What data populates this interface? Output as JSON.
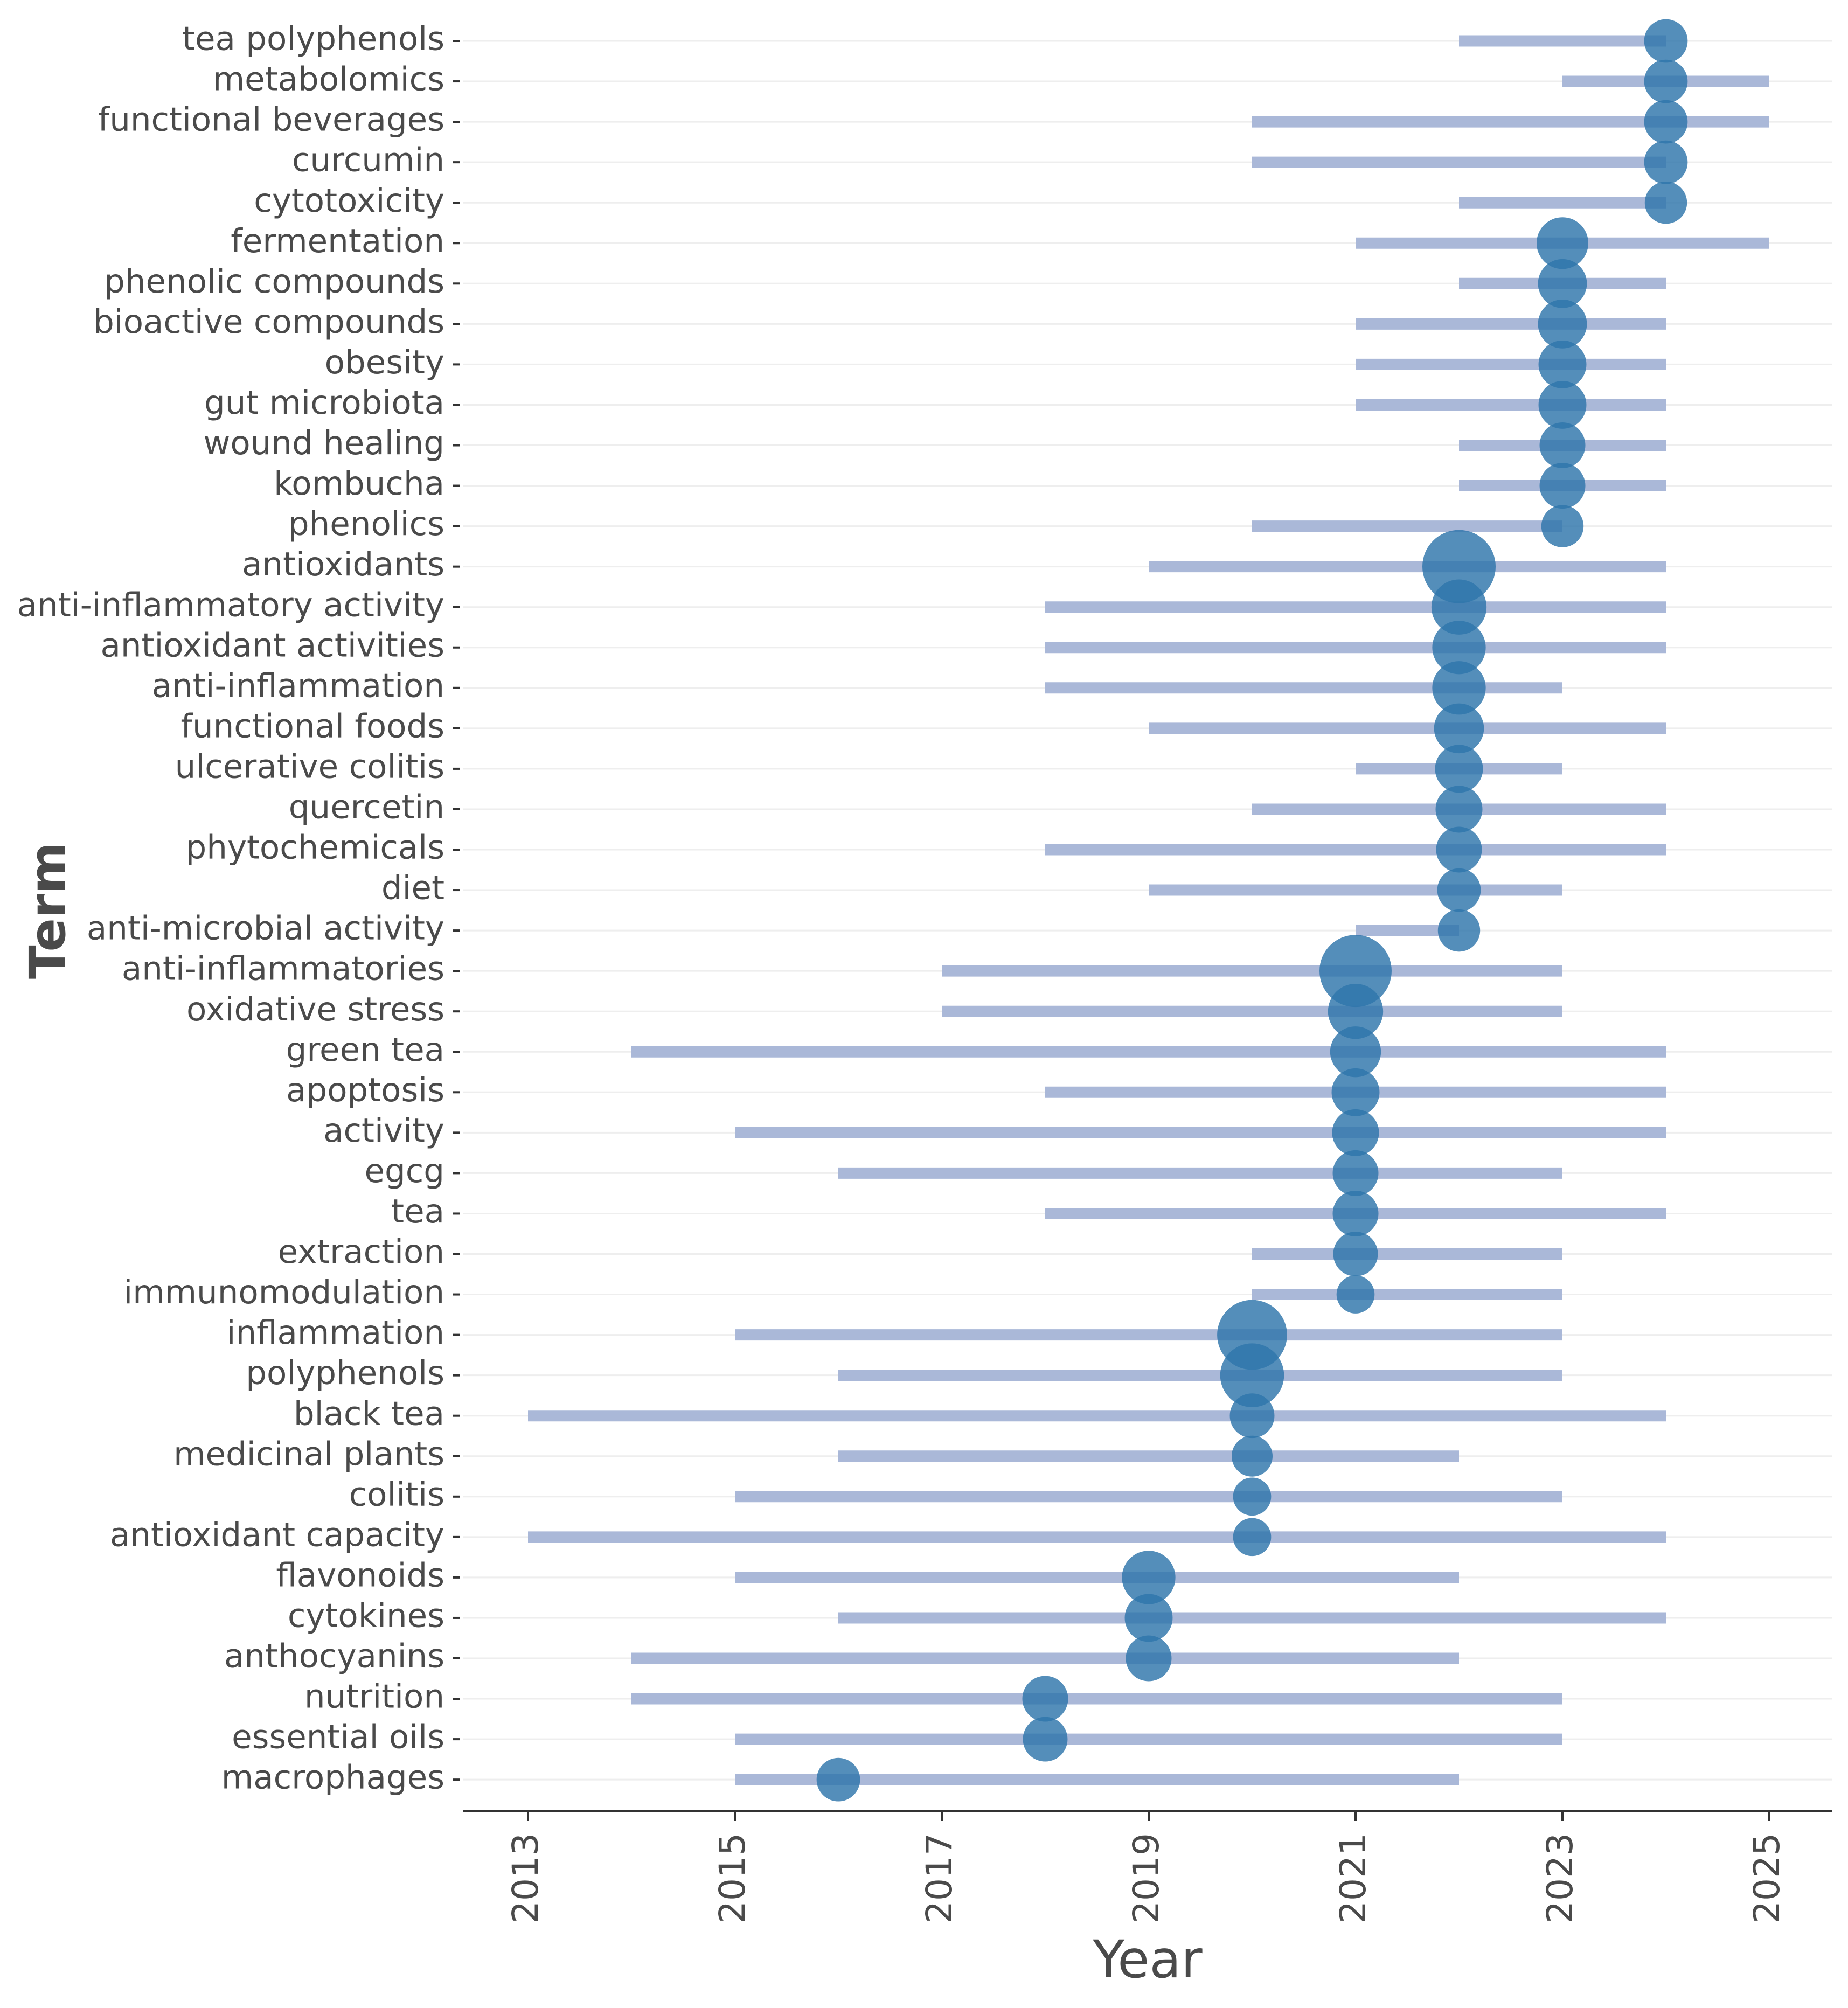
{
  "chart_data": {
    "type": "scatter",
    "subtype": "trend-topics",
    "title": "",
    "xlabel": "Year",
    "ylabel": "Term",
    "xlim": [
      2012.4,
      2025.6
    ],
    "xticks": [
      "2013",
      "2015",
      "2017",
      "2019",
      "2021",
      "2023",
      "2025"
    ],
    "grid": true,
    "colors": {
      "bar": "#aab8d8",
      "point": "#2e75ab",
      "gridline": "#eeeeee",
      "axis": "#333333",
      "text": "#4a4a4a"
    },
    "series": [
      {
        "term": "tea polyphenols",
        "start": 2022,
        "end": 2024,
        "median": 2024,
        "frequency": 10
      },
      {
        "term": "metabolomics",
        "start": 2023,
        "end": 2025,
        "median": 2024,
        "frequency": 10
      },
      {
        "term": "functional beverages",
        "start": 2020,
        "end": 2025,
        "median": 2024,
        "frequency": 10
      },
      {
        "term": "curcumin",
        "start": 2020,
        "end": 2024,
        "median": 2024,
        "frequency": 10
      },
      {
        "term": "cytotoxicity",
        "start": 2022,
        "end": 2024,
        "median": 2024,
        "frequency": 9
      },
      {
        "term": "fermentation",
        "start": 2021,
        "end": 2025,
        "median": 2023,
        "frequency": 18
      },
      {
        "term": "phenolic compounds",
        "start": 2022,
        "end": 2024,
        "median": 2023,
        "frequency": 15
      },
      {
        "term": "bioactive compounds",
        "start": 2021,
        "end": 2024,
        "median": 2023,
        "frequency": 15
      },
      {
        "term": "obesity",
        "start": 2021,
        "end": 2024,
        "median": 2023,
        "frequency": 14
      },
      {
        "term": "gut microbiota",
        "start": 2021,
        "end": 2024,
        "median": 2023,
        "frequency": 14
      },
      {
        "term": "wound healing",
        "start": 2022,
        "end": 2024,
        "median": 2023,
        "frequency": 12
      },
      {
        "term": "kombucha",
        "start": 2022,
        "end": 2024,
        "median": 2023,
        "frequency": 12
      },
      {
        "term": "phenolics",
        "start": 2020,
        "end": 2023,
        "median": 2023,
        "frequency": 9
      },
      {
        "term": "antioxidants",
        "start": 2019,
        "end": 2024,
        "median": 2022,
        "frequency": 50
      },
      {
        "term": "anti-inflammatory activity",
        "start": 2018,
        "end": 2024,
        "median": 2022,
        "frequency": 22
      },
      {
        "term": "antioxidant activities",
        "start": 2018,
        "end": 2024,
        "median": 2022,
        "frequency": 20
      },
      {
        "term": "anti-inflammation",
        "start": 2018,
        "end": 2023,
        "median": 2022,
        "frequency": 20
      },
      {
        "term": "functional foods",
        "start": 2019,
        "end": 2024,
        "median": 2022,
        "frequency": 16
      },
      {
        "term": "ulcerative colitis",
        "start": 2021,
        "end": 2023,
        "median": 2022,
        "frequency": 14
      },
      {
        "term": "quercetin",
        "start": 2020,
        "end": 2024,
        "median": 2022,
        "frequency": 13
      },
      {
        "term": "phytochemicals",
        "start": 2018,
        "end": 2024,
        "median": 2022,
        "frequency": 12
      },
      {
        "term": "diet",
        "start": 2019,
        "end": 2023,
        "median": 2022,
        "frequency": 10
      },
      {
        "term": "anti-microbial activity",
        "start": 2021,
        "end": 2022,
        "median": 2022,
        "frequency": 9
      },
      {
        "term": "anti-inflammatories",
        "start": 2017,
        "end": 2023,
        "median": 2021,
        "frequency": 48
      },
      {
        "term": "oxidative stress",
        "start": 2017,
        "end": 2023,
        "median": 2021,
        "frequency": 22
      },
      {
        "term": "green tea",
        "start": 2014,
        "end": 2024,
        "median": 2021,
        "frequency": 17
      },
      {
        "term": "apoptosis",
        "start": 2018,
        "end": 2024,
        "median": 2021,
        "frequency": 14
      },
      {
        "term": "activity",
        "start": 2015,
        "end": 2024,
        "median": 2021,
        "frequency": 13
      },
      {
        "term": "egcg",
        "start": 2016,
        "end": 2023,
        "median": 2021,
        "frequency": 12
      },
      {
        "term": "tea",
        "start": 2018,
        "end": 2024,
        "median": 2021,
        "frequency": 12
      },
      {
        "term": "extraction",
        "start": 2020,
        "end": 2023,
        "median": 2021,
        "frequency": 11
      },
      {
        "term": "immunomodulation",
        "start": 2020,
        "end": 2023,
        "median": 2021,
        "frequency": 6
      },
      {
        "term": "inflammation",
        "start": 2015,
        "end": 2023,
        "median": 2020,
        "frequency": 44
      },
      {
        "term": "polyphenols",
        "start": 2016,
        "end": 2023,
        "median": 2020,
        "frequency": 34
      },
      {
        "term": "black tea",
        "start": 2013,
        "end": 2024,
        "median": 2020,
        "frequency": 11
      },
      {
        "term": "medicinal plants",
        "start": 2016,
        "end": 2022,
        "median": 2020,
        "frequency": 8
      },
      {
        "term": "colitis",
        "start": 2015,
        "end": 2023,
        "median": 2020,
        "frequency": 6
      },
      {
        "term": "antioxidant capacity",
        "start": 2013,
        "end": 2024,
        "median": 2020,
        "frequency": 6
      },
      {
        "term": "flavonoids",
        "start": 2015,
        "end": 2022,
        "median": 2019,
        "frequency": 20
      },
      {
        "term": "cytokines",
        "start": 2016,
        "end": 2024,
        "median": 2019,
        "frequency": 14
      },
      {
        "term": "anthocyanins",
        "start": 2014,
        "end": 2022,
        "median": 2019,
        "frequency": 12
      },
      {
        "term": "nutrition",
        "start": 2014,
        "end": 2023,
        "median": 2018,
        "frequency": 12
      },
      {
        "term": "essential oils",
        "start": 2015,
        "end": 2023,
        "median": 2018,
        "frequency": 11
      },
      {
        "term": "macrophages",
        "start": 2015,
        "end": 2022,
        "median": 2016,
        "frequency": 10
      }
    ]
  }
}
